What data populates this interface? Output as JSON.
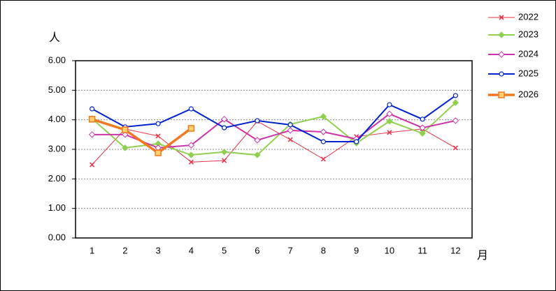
{
  "chart_data": {
    "type": "line",
    "y_label": "人",
    "x_label": "月",
    "categories": [
      "1",
      "2",
      "3",
      "4",
      "5",
      "6",
      "7",
      "8",
      "9",
      "10",
      "11",
      "12"
    ],
    "ylim": [
      0,
      6
    ],
    "yticks": [
      {
        "value": 0,
        "label": "0.00"
      },
      {
        "value": 1,
        "label": "1.00"
      },
      {
        "value": 2,
        "label": "2.00"
      },
      {
        "value": 3,
        "label": "3.00"
      },
      {
        "value": 4,
        "label": "4.00"
      },
      {
        "value": 5,
        "label": "5.00"
      },
      {
        "value": 6,
        "label": "6.00"
      }
    ],
    "grid": true,
    "legend": "right",
    "series": [
      {
        "name": "2022",
        "color": "#e8334a",
        "marker": "x",
        "values": [
          2.48,
          3.69,
          3.45,
          2.57,
          2.62,
          3.95,
          3.33,
          2.67,
          3.43,
          3.57,
          3.69,
          3.05
        ]
      },
      {
        "name": "2023",
        "color": "#8fd14f",
        "marker": "diamond",
        "values": [
          4.04,
          3.05,
          3.19,
          2.81,
          2.91,
          2.81,
          3.85,
          4.11,
          3.21,
          3.95,
          3.54,
          4.58
        ]
      },
      {
        "name": "2024",
        "color": "#cc33aa",
        "marker": "diamond",
        "values": [
          3.5,
          3.5,
          3.05,
          3.14,
          4.02,
          3.31,
          3.64,
          3.59,
          3.35,
          4.2,
          3.73,
          3.97
        ]
      },
      {
        "name": "2025",
        "color": "#0022cc",
        "marker": "circle",
        "values": [
          4.37,
          3.76,
          3.87,
          4.37,
          3.73,
          3.97,
          3.83,
          3.26,
          3.26,
          4.51,
          4.02,
          4.82
        ]
      },
      {
        "name": "2026",
        "color": "#f07820",
        "marker": "square",
        "values": [
          4.02,
          3.66,
          2.88,
          3.71,
          null,
          null,
          null,
          null,
          null,
          null,
          null,
          null
        ]
      }
    ]
  }
}
